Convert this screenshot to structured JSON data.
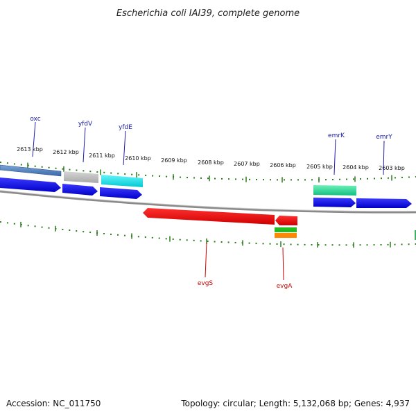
{
  "title": "Escherichia coli IAI39, complete genome",
  "footer": {
    "accession": "Accession: NC_011750",
    "summary": "Topology: circular; Length: 5,132,068 bp; Genes: 4,937"
  },
  "ticks": [
    "2613 kbp",
    "2612 kbp",
    "2611 kbp",
    "2610 kbp",
    "2609 kbp",
    "2608 kbp",
    "2607 kbp",
    "2606 kbp",
    "2605 kbp",
    "2604 kbp",
    "2603 kbp"
  ],
  "genes": [
    {
      "name": "oxc",
      "strand": "+",
      "color": "#1a1aa8"
    },
    {
      "name": "yfdV",
      "strand": "+",
      "color": "#1a1aa8"
    },
    {
      "name": "yfdE",
      "strand": "+",
      "color": "#1a1aa8"
    },
    {
      "name": "emrK",
      "strand": "+",
      "color": "#1a1aa8"
    },
    {
      "name": "emrY",
      "strand": "+",
      "color": "#1a1aa8"
    },
    {
      "name": "evgS",
      "strand": "-",
      "color": "#cc0000"
    },
    {
      "name": "evgA",
      "strand": "-",
      "color": "#cc0000"
    }
  ],
  "colors": {
    "cds": "#1010e0",
    "rev_cds": "#ee0000",
    "rna_gray": "#b8b8b8",
    "rna_cyan": "#00e0e8",
    "rna_steel": "#4a7ab5",
    "rna_teal": "#20d890",
    "rna_green": "#22bb22",
    "rna_orange": "#ff8800",
    "backbone": "#888888",
    "tick": "#2a7a1a"
  }
}
